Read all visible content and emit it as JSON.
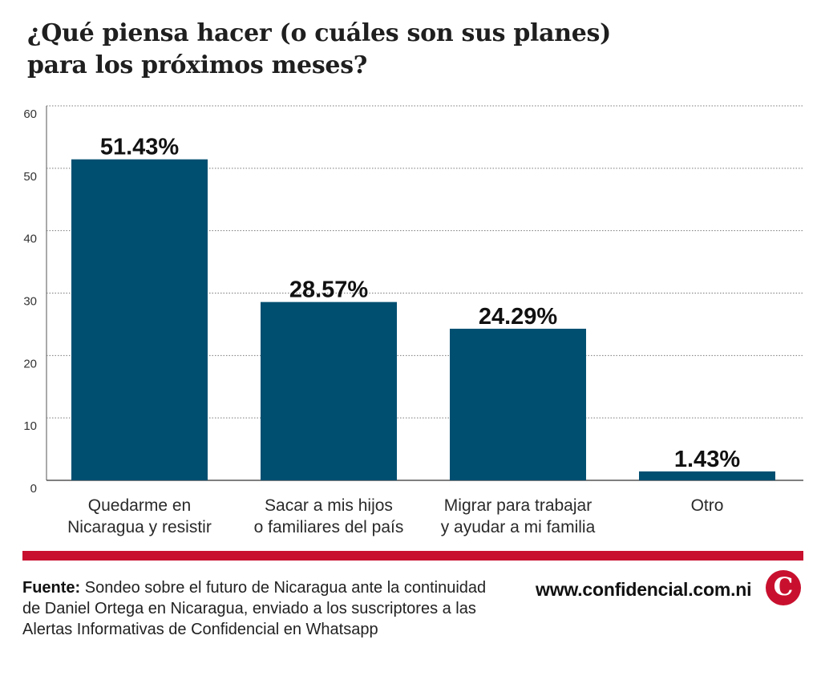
{
  "chart_data": {
    "type": "bar",
    "title": [
      "¿Qué piensa hacer (o cuáles son sus planes)",
      "para los próximos meses?"
    ],
    "categories": [
      [
        "Quedarme en",
        "Nicaragua y resistir"
      ],
      [
        "Sacar a mis hijos",
        "o familiares del país"
      ],
      [
        "Migrar para trabajar",
        "y ayudar a mi familia"
      ],
      [
        "Otro"
      ]
    ],
    "values": [
      51.43,
      28.57,
      24.29,
      1.43
    ],
    "value_labels": [
      "51.43%",
      "28.57%",
      "24.29%",
      "1.43%"
    ],
    "yticks": [
      0,
      10,
      20,
      30,
      40,
      50,
      60
    ],
    "ylim": [
      0,
      60
    ],
    "grid": true,
    "bar_color": "#004f71"
  },
  "source": {
    "label": "Fuente:",
    "text": "Sondeo sobre el futuro de Nicaragua ante la continuidad de Daniel Ortega en Nicaragua, enviado a los suscriptores a las Alertas Informativas de Confidencial en Whatsapp"
  },
  "branding": {
    "site": "www.confidencial.com.ni",
    "logo_letter": "C",
    "accent_color": "#c8102e"
  }
}
